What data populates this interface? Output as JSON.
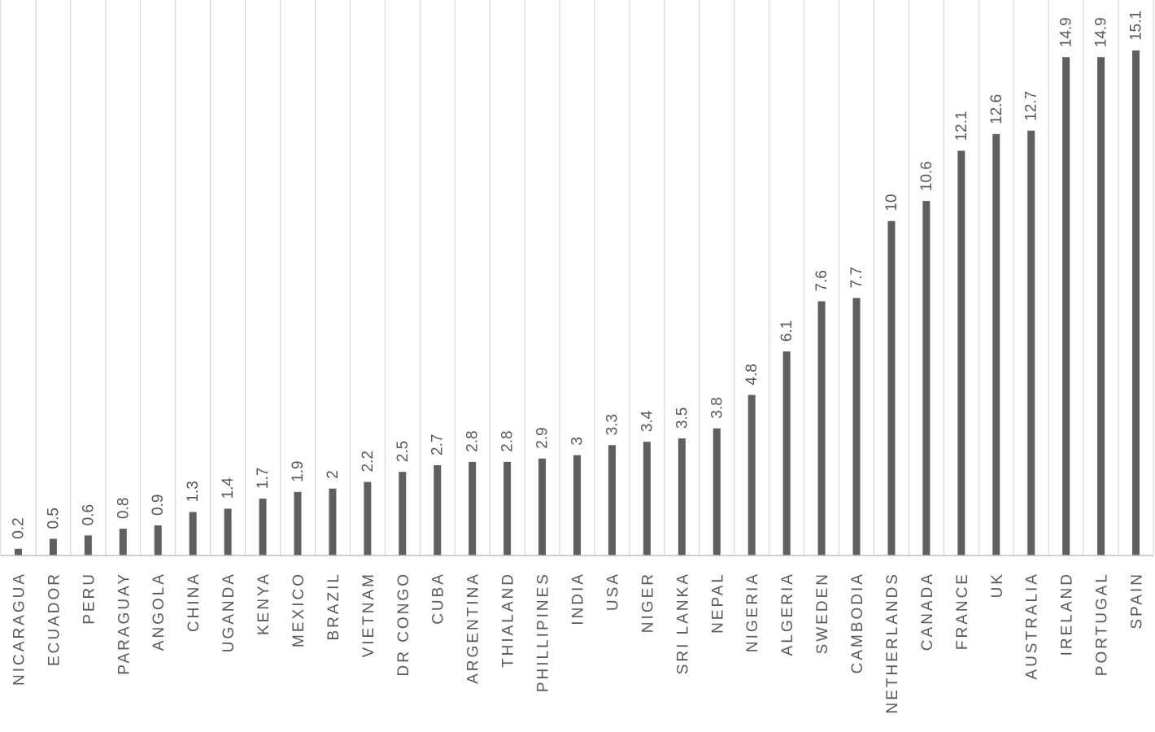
{
  "chart_data": {
    "type": "bar",
    "orientation": "vertical",
    "title": "",
    "xlabel": "",
    "ylabel": "",
    "ylim": [
      0,
      15.1
    ],
    "grid": "vertical lines between categories",
    "legend": "none",
    "bar_color": "#5f5f5f",
    "categories": [
      "NICARAGUA",
      "ECUADOR",
      "PERU",
      "PARAGUAY",
      "ANGOLA",
      "CHINA",
      "UGANDA",
      "KENYA",
      "MEXICO",
      "BRAZIL",
      "VIETNAM",
      "DR CONGO",
      "CUBA",
      "ARGENTINA",
      "THIALAND",
      "PHILLIPINES",
      "INDIA",
      "USA",
      "NIGER",
      "SRI LANKA",
      "NEPAL",
      "NIGERIA",
      "ALGERIA",
      "SWEDEN",
      "CAMBODIA",
      "NETHERLANDS",
      "CANADA",
      "FRANCE",
      "UK",
      "AUSTRALIA",
      "IRELAND",
      "PORTUGAL",
      "SPAIN"
    ],
    "values": [
      0.2,
      0.5,
      0.6,
      0.8,
      0.9,
      1.3,
      1.4,
      1.7,
      1.9,
      2,
      2.2,
      2.5,
      2.7,
      2.8,
      2.8,
      2.9,
      3,
      3.3,
      3.4,
      3.5,
      3.8,
      4.8,
      6.1,
      7.6,
      7.7,
      10,
      10.6,
      12.1,
      12.6,
      12.7,
      14.9,
      14.9,
      15.1
    ],
    "data_labels": [
      "0.2",
      "0.5",
      "0.6",
      "0.8",
      "0.9",
      "1.3",
      "1.4",
      "1.7",
      "1.9",
      "2",
      "2.2",
      "2.5",
      "2.7",
      "2.8",
      "2.8",
      "2.9",
      "3",
      "3.3",
      "3.4",
      "3.5",
      "3.8",
      "4.8",
      "6.1",
      "7.6",
      "7.7",
      "10",
      "10.6",
      "12.1",
      "12.6",
      "12.7",
      "14.9",
      "14.9",
      "15.1"
    ]
  }
}
